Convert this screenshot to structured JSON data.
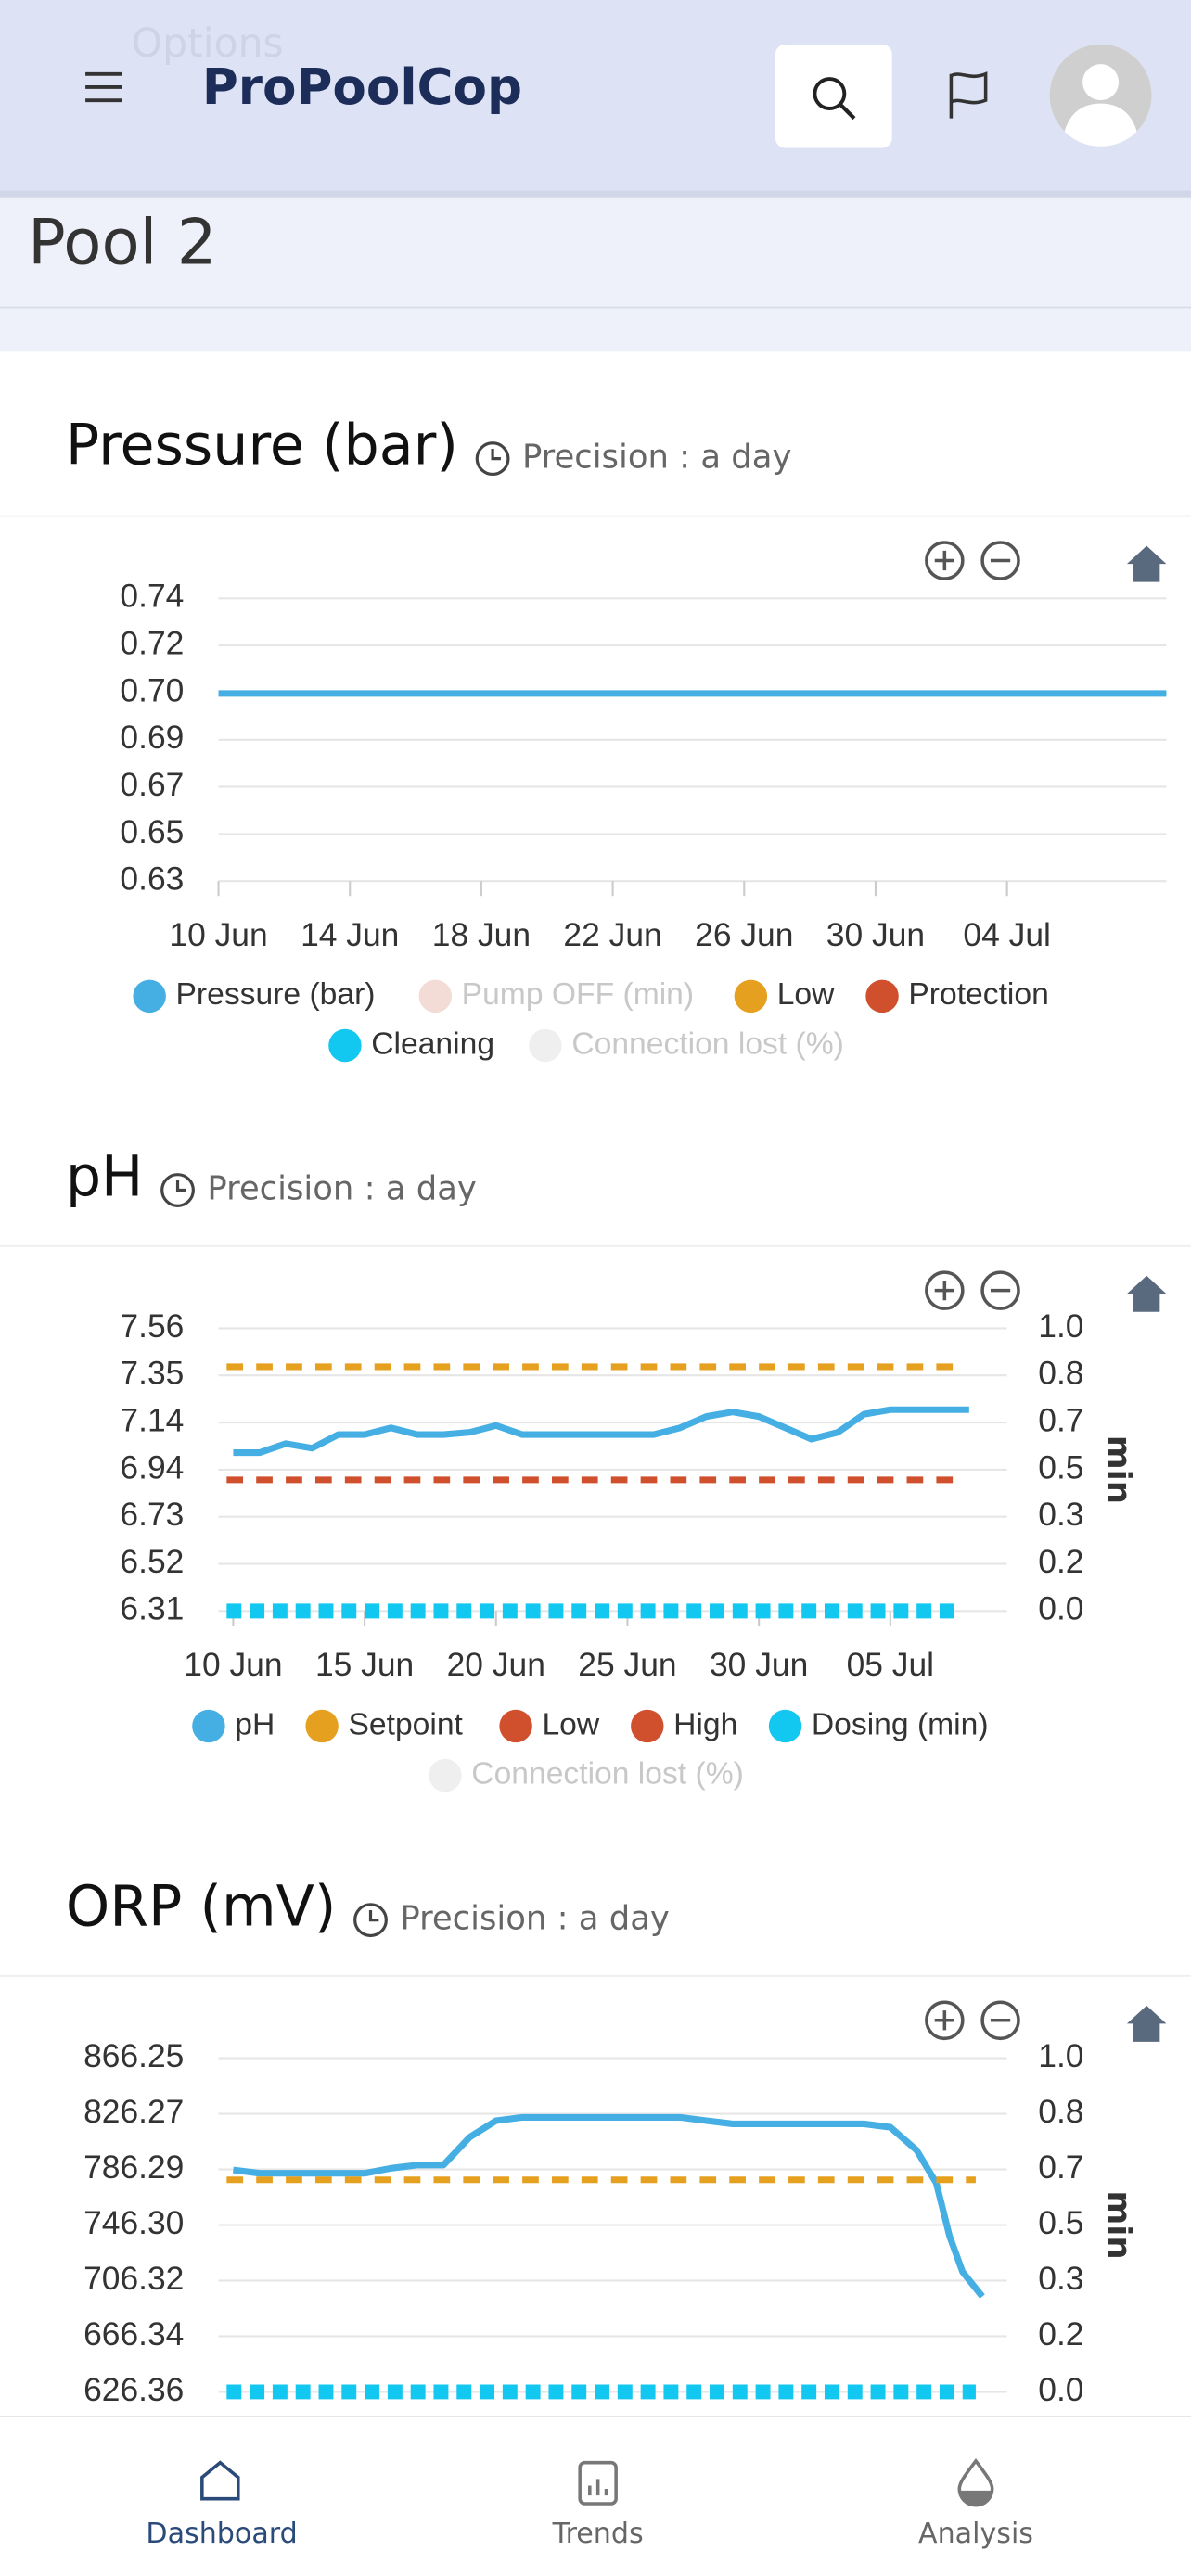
{
  "header": {
    "ghost": "Options",
    "brand": "ProPoolCop"
  },
  "page_title": "Pool 2",
  "chart_data": [
    {
      "type": "line",
      "title": "Pressure (bar)",
      "precision": "Precision : a day",
      "xlim": [
        0,
        28.85
      ],
      "xticks": [
        {
          "value": 0,
          "label": "10 Jun"
        },
        {
          "value": 4,
          "label": "14 Jun"
        },
        {
          "value": 8,
          "label": "18 Jun"
        },
        {
          "value": 12,
          "label": "22 Jun"
        },
        {
          "value": 16,
          "label": "26 Jun"
        },
        {
          "value": 20,
          "label": "30 Jun"
        },
        {
          "value": 24,
          "label": "04 Jul"
        }
      ],
      "ylim": [
        0.63,
        0.74
      ],
      "yticks": [
        {
          "value": 0.63,
          "label": "0.63"
        },
        {
          "value": 0.6483,
          "label": "0.65"
        },
        {
          "value": 0.6667,
          "label": "0.67"
        },
        {
          "value": 0.685,
          "label": "0.69"
        },
        {
          "value": 0.7033,
          "label": "0.70"
        },
        {
          "value": 0.7217,
          "label": "0.72"
        },
        {
          "value": 0.74,
          "label": "0.74"
        }
      ],
      "grid": true,
      "series": [
        {
          "name": "Pressure (bar)",
          "color": "#45aee3",
          "x": [
            0,
            28.85
          ],
          "values": [
            0.703,
            0.703
          ]
        },
        {
          "name": "Pump OFF (min)",
          "color": "#f3dcd6",
          "hidden": true
        },
        {
          "name": "Low",
          "color": "#e6a020"
        },
        {
          "name": "Protection",
          "color": "#d0502e"
        },
        {
          "name": "Cleaning",
          "color": "#12c8f0"
        },
        {
          "name": "Connection lost (%)",
          "color": "#efefef",
          "hidden": true
        }
      ]
    },
    {
      "type": "line",
      "title": "pH",
      "precision": "Precision : a day",
      "xlim": [
        -0.56,
        29.44
      ],
      "xticks": [
        {
          "value": 0,
          "label": "10 Jun"
        },
        {
          "value": 5,
          "label": "15 Jun"
        },
        {
          "value": 10,
          "label": "20 Jun"
        },
        {
          "value": 15,
          "label": "25 Jun"
        },
        {
          "value": 20,
          "label": "30 Jun"
        },
        {
          "value": 25,
          "label": "05 Jul"
        }
      ],
      "ylim": [
        6.31,
        7.56
      ],
      "yticks": [
        {
          "value": 6.31,
          "label": "6.31"
        },
        {
          "value": 6.5183,
          "label": "6.52"
        },
        {
          "value": 6.7267,
          "label": "6.73"
        },
        {
          "value": 6.935,
          "label": "6.94"
        },
        {
          "value": 7.1433,
          "label": "7.14"
        },
        {
          "value": 7.3517,
          "label": "7.35"
        },
        {
          "value": 7.56,
          "label": "7.56"
        }
      ],
      "y2lim": [
        0,
        1
      ],
      "y2ticks": [
        {
          "value": 0,
          "label": "0.0"
        },
        {
          "value": 0.1667,
          "label": "0.2"
        },
        {
          "value": 0.3333,
          "label": "0.3"
        },
        {
          "value": 0.5,
          "label": "0.5"
        },
        {
          "value": 0.6667,
          "label": "0.7"
        },
        {
          "value": 0.8333,
          "label": "0.8"
        },
        {
          "value": 1,
          "label": "1.0"
        }
      ],
      "y2_label": "min",
      "grid": true,
      "series": [
        {
          "name": "pH",
          "color": "#45aee3",
          "x": [
            0,
            1,
            2,
            3,
            4,
            5,
            6,
            7,
            8,
            9,
            10,
            11,
            12,
            13,
            14,
            15,
            16,
            17,
            18,
            19,
            20,
            21,
            22,
            23,
            24,
            25,
            26,
            27,
            28
          ],
          "values": [
            7.01,
            7.01,
            7.05,
            7.03,
            7.09,
            7.09,
            7.12,
            7.09,
            7.09,
            7.1,
            7.13,
            7.09,
            7.09,
            7.09,
            7.09,
            7.09,
            7.09,
            7.12,
            7.17,
            7.19,
            7.17,
            7.12,
            7.07,
            7.1,
            7.18,
            7.2,
            7.2,
            7.2,
            7.2
          ]
        },
        {
          "name": "Setpoint",
          "color": "#e6a020",
          "value": 7.39,
          "style": "dashed"
        },
        {
          "name": "Low",
          "color": "#d0502e",
          "value": 6.89,
          "style": "dashed"
        },
        {
          "name": "High",
          "color": "#d0502e"
        },
        {
          "name": "Dosing (min)",
          "color": "#12c8f0",
          "value": 0,
          "axis": "y2",
          "style": "dotted"
        },
        {
          "name": "Connection lost (%)",
          "color": "#efefef",
          "hidden": true
        }
      ]
    },
    {
      "type": "line",
      "title": "ORP (mV)",
      "precision": "Precision : a day",
      "xlim": [
        -0.56,
        29.44
      ],
      "ylim": [
        626.36,
        866.25
      ],
      "yticks": [
        626.36,
        666.34,
        706.32,
        {
          "value": 746.3,
          "label": "746.30"
        },
        786.29,
        826.27,
        866.25
      ],
      "y2lim": [
        0,
        1
      ],
      "y2ticks": [
        {
          "value": 0,
          "label": "0.0"
        },
        {
          "value": 0.1667,
          "label": "0.2"
        },
        {
          "value": 0.3333,
          "label": "0.3"
        },
        {
          "value": 0.5,
          "label": "0.5"
        },
        {
          "value": 0.6667,
          "label": "0.7"
        },
        {
          "value": 0.8333,
          "label": "0.8"
        },
        {
          "value": 1,
          "label": "1.0"
        }
      ],
      "y2_label": "min",
      "grid": true,
      "series": [
        {
          "name": "ORP",
          "color": "#45aee3",
          "x": [
            0,
            1,
            2,
            3,
            4,
            5,
            6,
            7,
            8,
            9,
            10,
            11,
            12,
            13,
            14,
            15,
            16,
            17,
            18,
            19,
            20,
            21,
            22,
            23,
            24,
            25,
            26,
            26.75,
            27.25,
            27.75,
            28.5
          ],
          "values": [
            785.9,
            783.5,
            783.5,
            783.5,
            783.5,
            783.5,
            787.1,
            789.4,
            789.4,
            809.5,
            821.3,
            823.7,
            823.7,
            823.7,
            823.7,
            823.7,
            823.7,
            823.7,
            821.3,
            819.0,
            819.0,
            819.0,
            819.0,
            819.0,
            819.0,
            816.6,
            800.1,
            776.4,
            738.6,
            712.6,
            694.9
          ],
          "legend": false
        },
        {
          "name": "Setpoint",
          "color": "#e6a020",
          "value": 778.8,
          "style": "dashed",
          "legend": false
        },
        {
          "name": "Dosing (min)",
          "color": "#12c8f0",
          "value": 0,
          "axis": "y2",
          "style": "dotted",
          "legend": false
        }
      ]
    }
  ],
  "nav": [
    {
      "label": "Dashboard",
      "active": true
    },
    {
      "label": "Trends"
    },
    {
      "label": "Analysis"
    }
  ]
}
